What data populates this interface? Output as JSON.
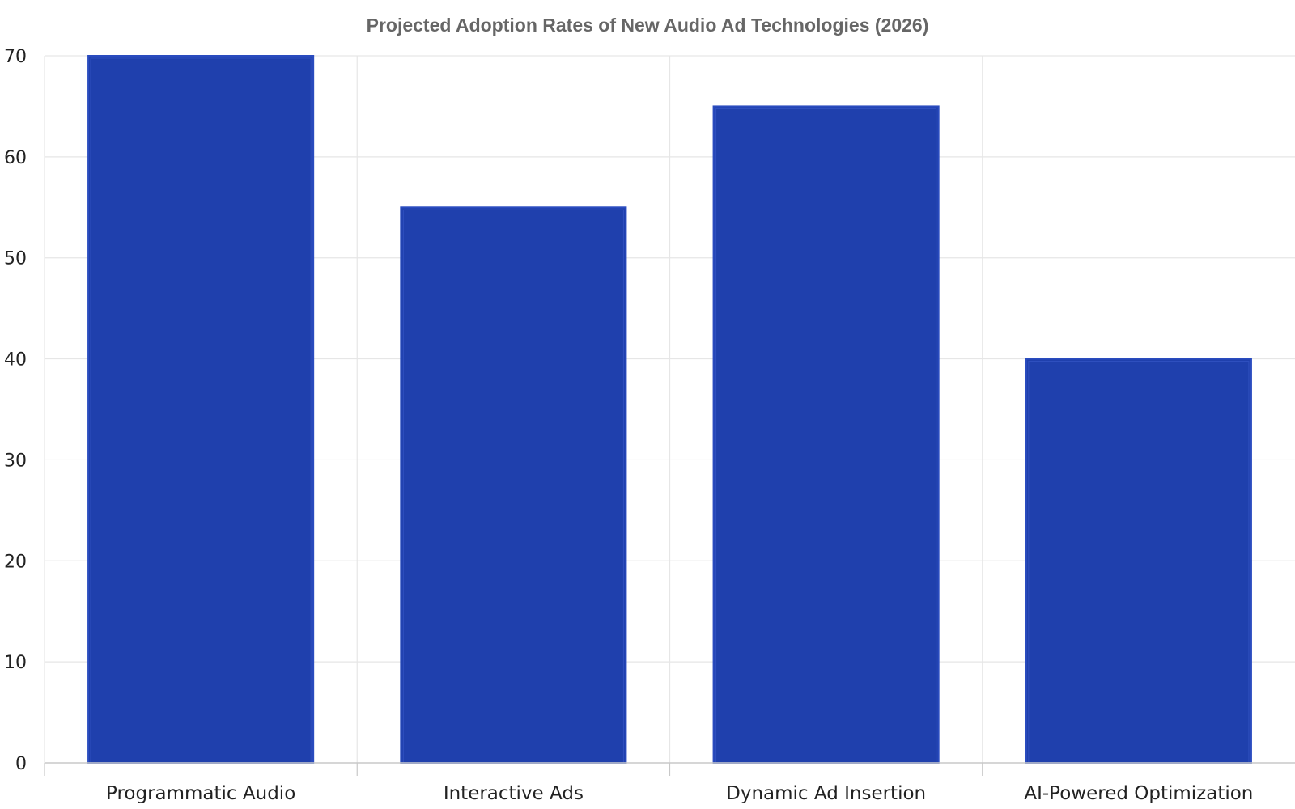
{
  "chart_data": {
    "type": "bar",
    "title": "Projected Adoption Rates of New Audio Ad Technologies (2026)",
    "xlabel": "",
    "ylabel": "",
    "categories": [
      "Programmatic Audio",
      "Interactive Ads",
      "Dynamic Ad Insertion",
      "AI-Powered Optimization"
    ],
    "values": [
      70,
      55,
      65,
      40
    ],
    "ylim": [
      0,
      70
    ],
    "yticks": [
      0,
      10,
      20,
      30,
      40,
      50,
      60,
      70
    ],
    "grid": true,
    "legend": "none",
    "colors": {
      "bar_fill": "#1f40ad",
      "bar_stroke": "#2a4cbf",
      "grid": "#e6e6e6",
      "axis": "#c8c8c8"
    }
  }
}
